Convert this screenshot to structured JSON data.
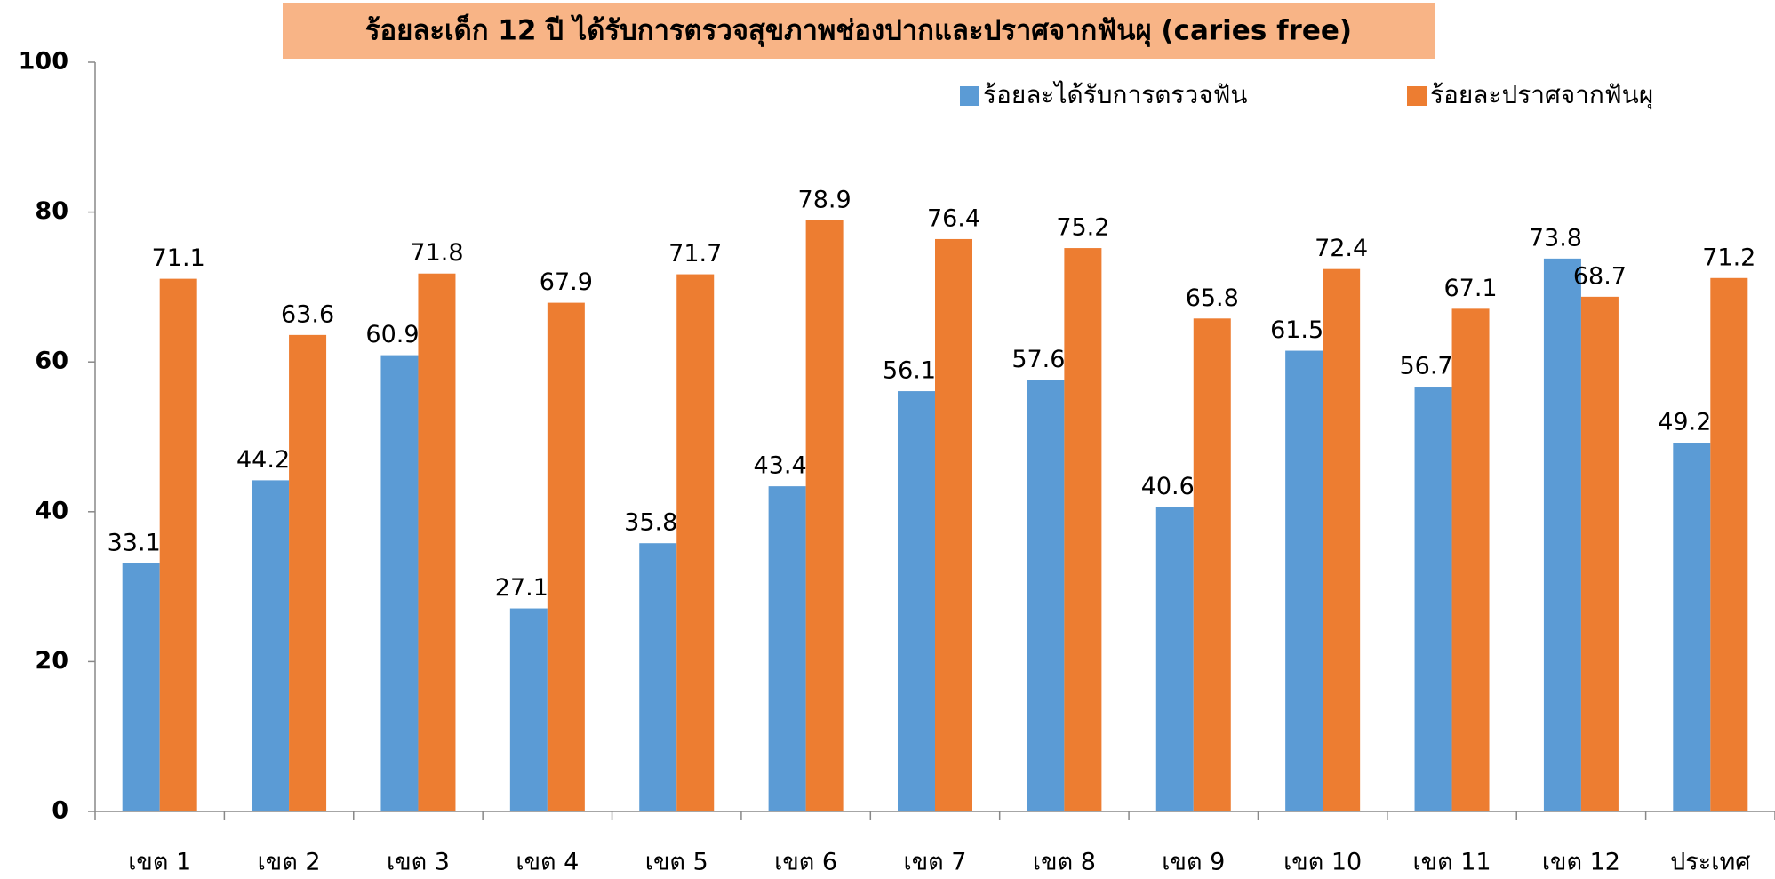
{
  "chart_data": {
    "type": "bar",
    "title": "ร้อยละเด็ก 12 ปี ได้รับการตรวจสุขภาพช่องปากและปราศจากฟันผุ (caries free)",
    "categories": [
      "เขต 1",
      "เขต 2",
      "เขต 3",
      "เขต 4",
      "เขต 5",
      "เขต 6",
      "เขต 7",
      "เขต 8",
      "เขต 9",
      "เขต 10",
      "เขต 11",
      "เขต 12",
      "ประเทศ"
    ],
    "series": [
      {
        "name": "ร้อยละได้รับการตรวจฟัน",
        "color": "#5b9bd5",
        "values": [
          33.1,
          44.2,
          60.9,
          27.1,
          35.8,
          43.4,
          56.1,
          57.6,
          40.6,
          61.5,
          56.7,
          73.8,
          49.2
        ]
      },
      {
        "name": "ร้อยละปราศจากฟันผุ",
        "color": "#ed7d31",
        "values": [
          71.1,
          63.6,
          71.8,
          67.9,
          71.7,
          78.9,
          76.4,
          75.2,
          65.8,
          72.4,
          67.1,
          68.7,
          71.2
        ]
      }
    ],
    "ylim": [
      0,
      100
    ],
    "yticks": [
      0,
      20,
      40,
      60,
      80,
      100
    ],
    "grid": false,
    "legend": "top-right"
  }
}
